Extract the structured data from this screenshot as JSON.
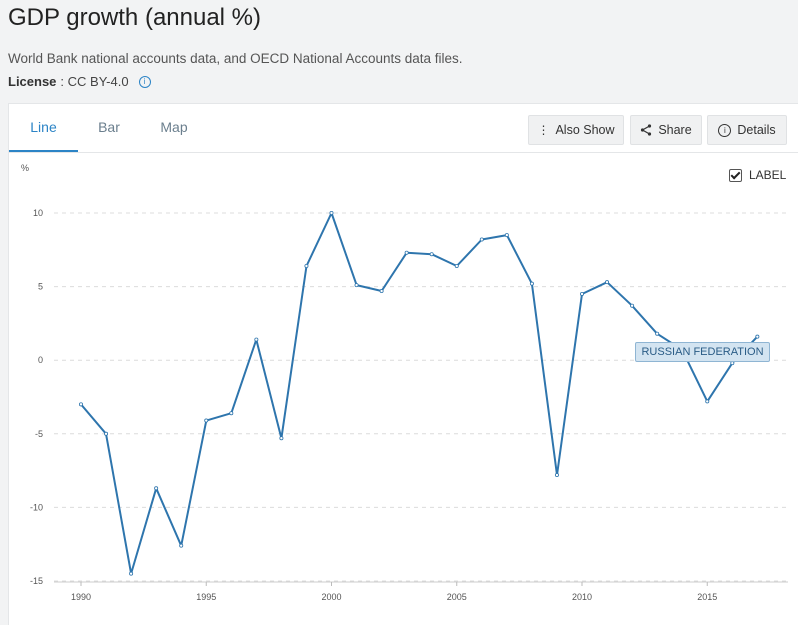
{
  "header": {
    "title": "GDP growth (annual %)",
    "source": "World Bank national accounts data, and OECD National Accounts data files.",
    "license_label": "License",
    "license_value": ": CC BY-4.0"
  },
  "tabs": [
    {
      "label": "Line",
      "active": true
    },
    {
      "label": "Bar",
      "active": false
    },
    {
      "label": "Map",
      "active": false
    }
  ],
  "toolbar": {
    "also_show": "Also Show",
    "share": "Share",
    "details": "Details"
  },
  "label_toggle": {
    "label": "LABEL",
    "checked": true
  },
  "colors": {
    "accent": "#2c84c6",
    "line": "#2e75ad",
    "grid": "#dcdcdc"
  },
  "chart_data": {
    "type": "line",
    "ylabel": "%",
    "ylim": [
      -15,
      10
    ],
    "yticks": [
      10,
      5,
      0,
      -5,
      -10,
      -15
    ],
    "xlim": [
      1990,
      2017
    ],
    "xticks": [
      1990,
      1995,
      2000,
      2005,
      2010,
      2015
    ],
    "grid": true,
    "series": [
      {
        "name": "RUSSIAN FEDERATION",
        "x": [
          1990,
          1991,
          1992,
          1993,
          1994,
          1995,
          1996,
          1997,
          1998,
          1999,
          2000,
          2001,
          2002,
          2003,
          2004,
          2005,
          2006,
          2007,
          2008,
          2009,
          2010,
          2011,
          2012,
          2013,
          2014,
          2015,
          2016,
          2017
        ],
        "values": [
          -3.0,
          -5.0,
          -14.5,
          -8.7,
          -12.6,
          -4.1,
          -3.6,
          1.4,
          -5.3,
          6.4,
          10.0,
          5.1,
          4.7,
          7.3,
          7.2,
          6.4,
          8.2,
          8.5,
          5.2,
          -7.8,
          4.5,
          5.3,
          3.7,
          1.8,
          0.7,
          -2.8,
          -0.2,
          1.6
        ]
      }
    ]
  }
}
